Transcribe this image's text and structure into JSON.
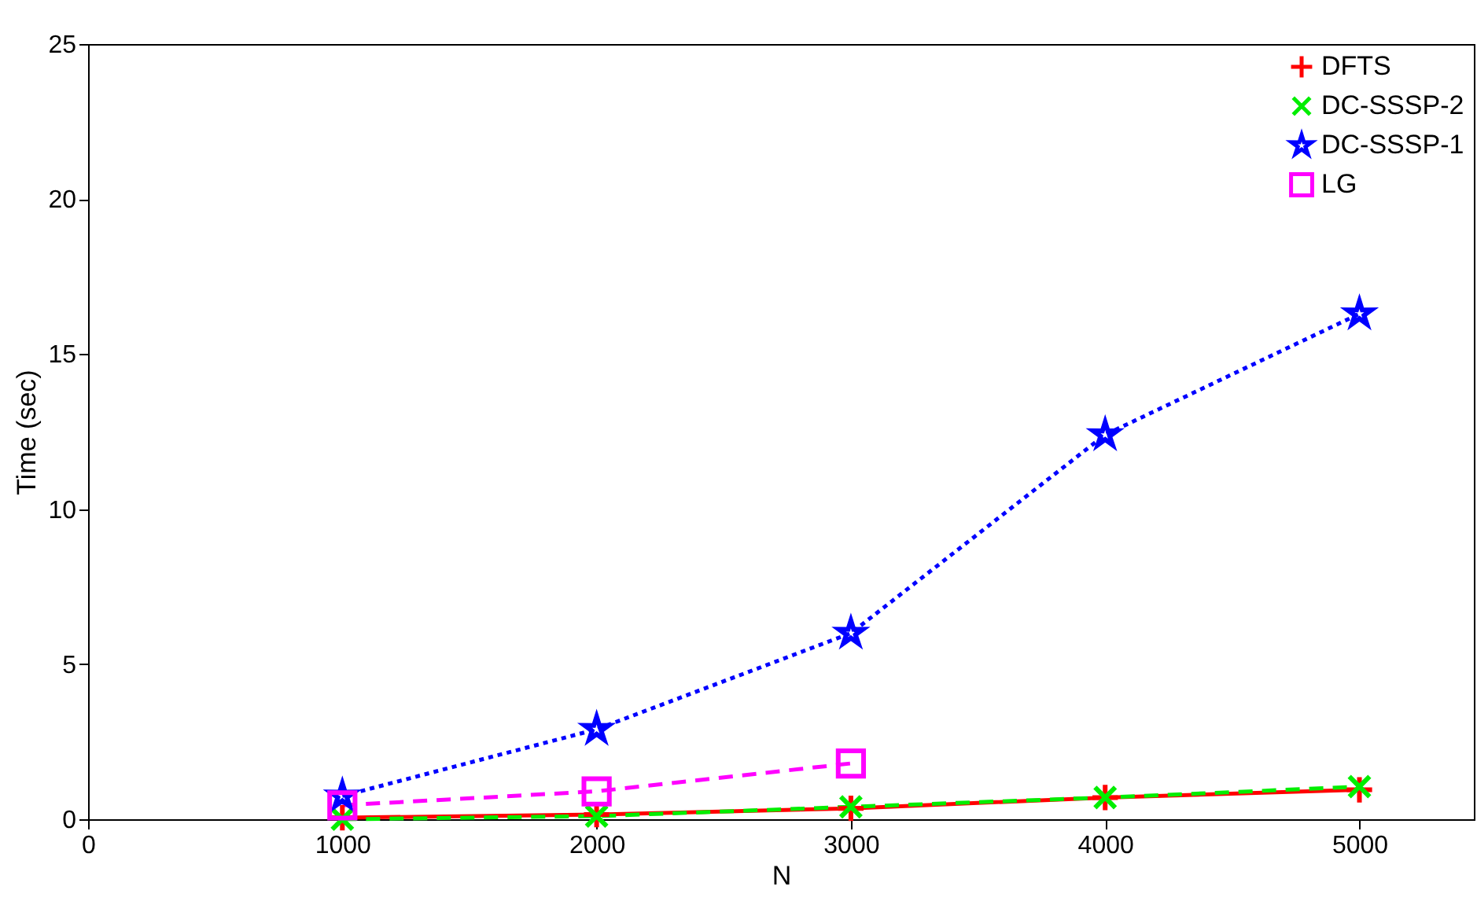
{
  "chart_data": {
    "type": "line",
    "xlabel": "N",
    "ylabel": "Time (sec)",
    "x": [
      1000,
      2000,
      3000,
      4000,
      5000
    ],
    "xlim": [
      0,
      5450
    ],
    "xticks": [
      0,
      1000,
      2000,
      3000,
      4000,
      5000
    ],
    "ylim": [
      0,
      25
    ],
    "yticks": [
      0,
      5,
      10,
      15,
      20,
      25
    ],
    "grid": false,
    "legend": "top right",
    "series": [
      {
        "name": "DFTS",
        "color": "#ff0000",
        "marker": "cross",
        "line_style": "solid",
        "values": [
          0.05,
          0.15,
          0.35,
          0.7,
          0.95
        ]
      },
      {
        "name": "DC-SSSP-2",
        "color": "#00ee00",
        "marker": "cross",
        "line_style": "dashed",
        "values": [
          0.0,
          0.1,
          0.4,
          0.7,
          1.05
        ]
      },
      {
        "name": "DC-SSSP-1",
        "color": "#0000ff",
        "marker": "star",
        "line_style": "dotted",
        "values": [
          0.75,
          2.9,
          6.0,
          12.4,
          16.3
        ]
      },
      {
        "name": "LG",
        "color": "#ff00ff",
        "marker": "square",
        "x": [
          1000,
          2000,
          3000
        ],
        "line_style": "dashed",
        "values": [
          0.45,
          0.9,
          1.8
        ]
      }
    ]
  }
}
